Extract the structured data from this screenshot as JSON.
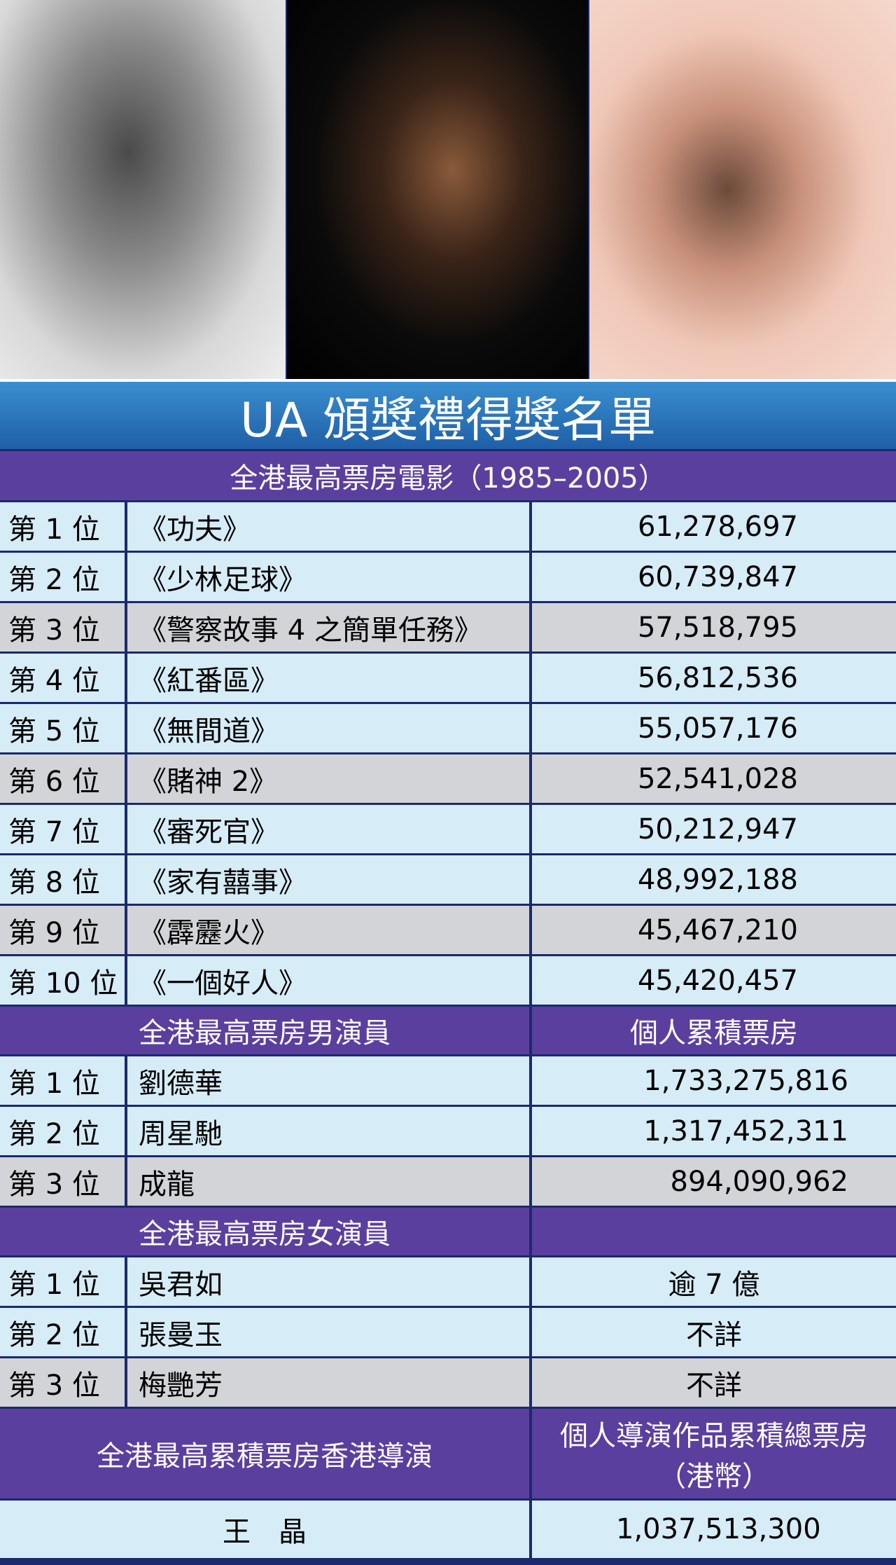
{
  "title": "UA 頒獎禮得獎名單",
  "movies": {
    "header": "全港最高票房電影（1985–2005）",
    "rows": [
      [
        "第 1 位",
        "《功夫》",
        "61,278,697"
      ],
      [
        "第 2 位",
        "《少林足球》",
        "60,739,847"
      ],
      [
        "第 3 位",
        "《警察故事 4 之簡單任務》",
        "57,518,795"
      ],
      [
        "第 4 位",
        "《紅番區》",
        "56,812,536"
      ],
      [
        "第 5 位",
        "《無間道》",
        "55,057,176"
      ],
      [
        "第 6 位",
        "《賭神 2》",
        "52,541,028"
      ],
      [
        "第 7 位",
        "《審死官》",
        "50,212,947"
      ],
      [
        "第 8 位",
        "《家有囍事》",
        "48,992,188"
      ],
      [
        "第 9 位",
        "《霹靂火》",
        "45,467,210"
      ],
      [
        "第 10 位",
        "《一個好人》",
        "45,420,457"
      ]
    ]
  },
  "actors": {
    "header": {
      "left": "全港最高票房男演員",
      "right": [
        "個人累積票房"
      ]
    },
    "rows": [
      [
        "第 1 位",
        "劉德華",
        "1,733,275,816"
      ],
      [
        "第 2 位",
        "周星馳",
        "1,317,452,311"
      ],
      [
        "第 3 位",
        "成龍",
        "894,090,962"
      ]
    ]
  },
  "actresses": {
    "header": {
      "left": "全港最高票房女演員",
      "right": []
    },
    "rows": [
      [
        "第 1 位",
        "吳君如",
        "逾 7 億"
      ],
      [
        "第 2 位",
        "張曼玉",
        "不詳"
      ],
      [
        "第 3 位",
        "梅艷芳",
        "不詳"
      ]
    ]
  },
  "directors": {
    "header": {
      "left": "全港最高累積票房香港導演",
      "right": [
        "個人導演作品累積總票房",
        "（港幣）"
      ]
    },
    "rows": [
      [
        "王　晶",
        "1,037,513,300"
      ]
    ]
  }
}
